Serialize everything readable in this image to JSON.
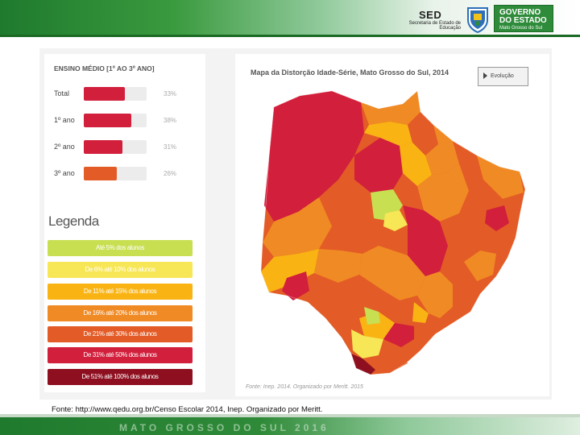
{
  "header": {
    "sed_title": "SED",
    "sed_sub": "Secretaria de Estado de Educação",
    "gov_line1": "GOVERNO",
    "gov_line2": "DO ESTADO",
    "gov_line3": "Mato Grosso do Sul"
  },
  "ensino": {
    "title": "ENSINO MÉDIO [1º AO 3º ANO]",
    "rows": [
      {
        "label": "Total",
        "value": 33,
        "pct": "33%",
        "color": "#d21f3c"
      },
      {
        "label": "1º ano",
        "value": 38,
        "pct": "38%",
        "color": "#d21f3c"
      },
      {
        "label": "2º ano",
        "value": 31,
        "pct": "31%",
        "color": "#d21f3c"
      },
      {
        "label": "3º ano",
        "value": 26,
        "pct": "26%",
        "color": "#e35b26"
      }
    ]
  },
  "legend": {
    "title": "Legenda",
    "items": [
      {
        "label": "Até 5% dos alunos",
        "color": "#c8df52"
      },
      {
        "label": "De 6% até 10% dos alunos",
        "color": "#f7e655"
      },
      {
        "label": "De 11% até 15% dos alunos",
        "color": "#f9b414"
      },
      {
        "label": "De 16% até 20% dos alunos",
        "color": "#f08a24"
      },
      {
        "label": "De 21% até 30% dos alunos",
        "color": "#e35b26"
      },
      {
        "label": "De 31% até 50% dos alunos",
        "color": "#d21f3c"
      },
      {
        "label": "De 51% até 100% dos alunos",
        "color": "#8e1020"
      }
    ]
  },
  "map": {
    "title": "Mapa da Distorção Idade-Série, Mato Grosso do Sul, 2014",
    "evolution_label": "Evolução",
    "source": "Fonte: Inep. 2014. Organizado por Meritt. 2015"
  },
  "footer": {
    "source": "Fonte: http://www.qedu.org.br/Censo Escolar 2014, Inep. Organizado por Meritt.",
    "band_text": "MATO GROSSO DO SUL 2016"
  }
}
